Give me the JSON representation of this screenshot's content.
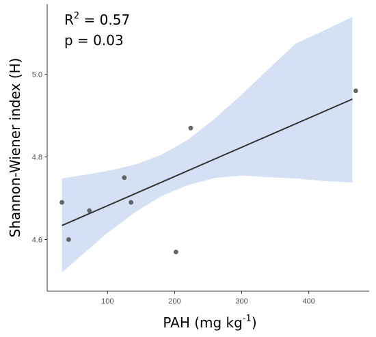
{
  "chart_data": {
    "type": "scatter",
    "xlabel": "PAH (mg kg",
    "xlabel_sup": "-1",
    "xlabel_end": ")",
    "ylabel": "Shannon-Wiener index (H)",
    "annotations": {
      "r2_prefix": "R",
      "r2_sup": "2",
      "r2_value": " = 0.57",
      "p_text": "p = 0.03"
    },
    "x_ticks": [
      100,
      200,
      300,
      400
    ],
    "x_tick_labels": [
      "100",
      "200",
      "300",
      "400"
    ],
    "y_ticks": [
      4.6,
      4.8,
      5.0
    ],
    "y_tick_labels": [
      "4.6",
      "4.8",
      "5.0"
    ],
    "xlim": [
      10,
      490
    ],
    "ylim": [
      4.475,
      5.17
    ],
    "points": [
      {
        "x": 32,
        "y": 4.69
      },
      {
        "x": 42,
        "y": 4.6
      },
      {
        "x": 73,
        "y": 4.67
      },
      {
        "x": 125,
        "y": 4.75
      },
      {
        "x": 135,
        "y": 4.69
      },
      {
        "x": 202,
        "y": 4.57
      },
      {
        "x": 224,
        "y": 4.87
      },
      {
        "x": 470,
        "y": 4.96
      }
    ],
    "fit_line": {
      "x": [
        32,
        465
      ],
      "y": [
        4.634,
        4.94
      ]
    },
    "confidence_band": {
      "x": [
        32,
        60,
        100,
        140,
        180,
        220,
        260,
        300,
        340,
        380,
        420,
        465
      ],
      "upper": [
        4.748,
        4.755,
        4.766,
        4.781,
        4.805,
        4.842,
        4.893,
        4.951,
        5.013,
        5.074,
        5.104,
        5.139
      ],
      "lower": [
        4.52,
        4.56,
        4.616,
        4.665,
        4.705,
        4.732,
        4.749,
        4.755,
        4.751,
        4.748,
        4.742,
        4.738
      ]
    },
    "grid": false,
    "colors": {
      "points": "#555555",
      "line": "#333333",
      "band": "#d6e0f5",
      "axis": "#333333"
    }
  }
}
